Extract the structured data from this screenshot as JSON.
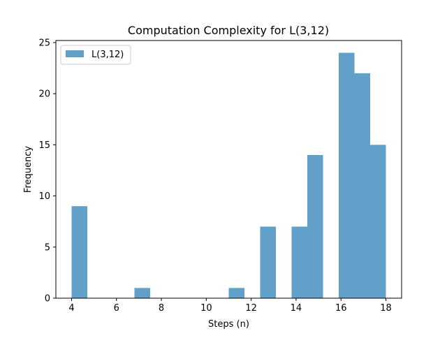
{
  "chart_data": {
    "type": "bar",
    "title": "Computation Complexity for L(3,12)",
    "xlabel": "Steps (n)",
    "ylabel": "Frequency",
    "xlim": [
      3.3,
      18.7
    ],
    "ylim": [
      0,
      25.2
    ],
    "x_ticks": [
      4,
      6,
      8,
      10,
      12,
      14,
      16,
      18
    ],
    "y_ticks": [
      0,
      5,
      10,
      15,
      20,
      25
    ],
    "bin_edges": [
      4.0,
      4.7,
      5.4,
      6.1,
      6.8,
      7.5,
      8.2,
      8.9,
      9.6,
      10.3,
      11.0,
      11.7,
      12.4,
      13.1,
      13.8,
      14.5,
      15.2,
      15.9,
      16.6,
      17.3,
      18.0
    ],
    "series": [
      {
        "name": "L(3,12)",
        "color": "#1f77b4",
        "values": [
          9,
          0,
          0,
          0,
          1,
          0,
          0,
          0,
          0,
          0,
          1,
          0,
          7,
          0,
          7,
          14,
          0,
          24,
          22,
          15
        ]
      }
    ],
    "grid": false,
    "legend_position": "top-left"
  }
}
